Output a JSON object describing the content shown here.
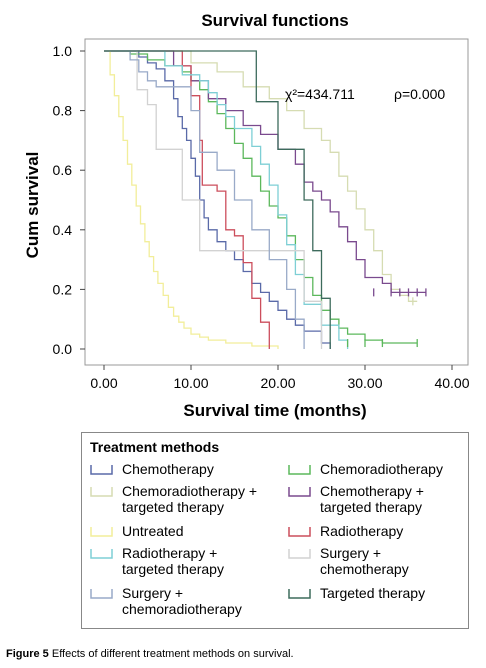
{
  "chart_data": {
    "type": "line",
    "title": "Survival functions",
    "xlabel": "Survival time (months)",
    "ylabel": "Cum survival",
    "xlim": [
      0,
      40
    ],
    "ylim": [
      0,
      1
    ],
    "xticks": [
      "0.00",
      "10.00",
      "20.00",
      "30.00",
      "40.00"
    ],
    "yticks": [
      "0.0",
      "0.2",
      "0.4",
      "0.6",
      "0.8",
      "1.0"
    ],
    "annotation_chi": "χ²=434.711",
    "annotation_p": "ρ=0.000",
    "legend_title": "Treatment methods",
    "series": [
      {
        "name": "Chemotherapy",
        "color": "#5a6aa8",
        "points": [
          [
            0,
            1.0
          ],
          [
            3,
            1.0
          ],
          [
            4,
            0.98
          ],
          [
            5,
            0.96
          ],
          [
            6,
            0.94
          ],
          [
            7,
            0.9
          ],
          [
            8,
            0.84
          ],
          [
            8.5,
            0.78
          ],
          [
            9,
            0.74
          ],
          [
            9.5,
            0.7
          ],
          [
            10,
            0.64
          ],
          [
            10.5,
            0.58
          ],
          [
            11,
            0.5
          ],
          [
            11.5,
            0.44
          ],
          [
            12,
            0.4
          ],
          [
            13,
            0.36
          ],
          [
            14,
            0.33
          ],
          [
            15,
            0.3
          ],
          [
            16,
            0.26
          ],
          [
            17,
            0.22
          ],
          [
            18,
            0.19
          ],
          [
            19,
            0.16
          ],
          [
            20,
            0.13
          ],
          [
            21,
            0.1
          ],
          [
            22,
            0.08
          ],
          [
            23,
            0.06
          ],
          [
            25,
            0.02
          ],
          [
            26,
            0.0
          ]
        ]
      },
      {
        "name": "Chemoradiotherapy",
        "color": "#5cb85c",
        "points": [
          [
            0,
            1.0
          ],
          [
            3,
            0.99
          ],
          [
            5,
            0.97
          ],
          [
            7,
            0.95
          ],
          [
            9,
            0.93
          ],
          [
            10,
            0.9
          ],
          [
            11,
            0.87
          ],
          [
            12,
            0.83
          ],
          [
            13,
            0.79
          ],
          [
            14,
            0.74
          ],
          [
            15,
            0.69
          ],
          [
            16,
            0.64
          ],
          [
            17,
            0.58
          ],
          [
            18,
            0.53
          ],
          [
            19,
            0.48
          ],
          [
            20,
            0.44
          ],
          [
            21,
            0.38
          ],
          [
            22,
            0.3
          ],
          [
            23,
            0.24
          ],
          [
            24,
            0.18
          ],
          [
            25,
            0.13
          ],
          [
            26,
            0.1
          ],
          [
            27,
            0.07
          ],
          [
            28,
            0.05
          ],
          [
            30,
            0.03
          ],
          [
            32,
            0.02
          ],
          [
            36,
            0.02
          ]
        ]
      },
      {
        "name": "Chemoradiotherapy + targeted therapy",
        "color": "#d6dcb2",
        "points": [
          [
            0,
            1.0
          ],
          [
            8,
            1.0
          ],
          [
            10,
            0.96
          ],
          [
            13,
            0.93
          ],
          [
            16,
            0.88
          ],
          [
            19,
            0.84
          ],
          [
            21,
            0.8
          ],
          [
            23,
            0.74
          ],
          [
            25,
            0.7
          ],
          [
            26,
            0.66
          ],
          [
            27,
            0.58
          ],
          [
            28,
            0.53
          ],
          [
            29,
            0.47
          ],
          [
            30,
            0.4
          ],
          [
            31,
            0.33
          ],
          [
            32,
            0.25
          ],
          [
            33,
            0.2
          ],
          [
            34,
            0.18
          ],
          [
            35,
            0.16
          ],
          [
            36,
            0.16
          ]
        ]
      },
      {
        "name": "Chemotherapy + targeted therapy",
        "color": "#7a4a8e",
        "points": [
          [
            0,
            1.0
          ],
          [
            7,
            1.0
          ],
          [
            8,
            0.95
          ],
          [
            10,
            0.9
          ],
          [
            12,
            0.84
          ],
          [
            14,
            0.8
          ],
          [
            16,
            0.75
          ],
          [
            18,
            0.72
          ],
          [
            20,
            0.67
          ],
          [
            22,
            0.62
          ],
          [
            23,
            0.56
          ],
          [
            24,
            0.53
          ],
          [
            25,
            0.5
          ],
          [
            26,
            0.46
          ],
          [
            27,
            0.41
          ],
          [
            28,
            0.36
          ],
          [
            29,
            0.3
          ],
          [
            30,
            0.24
          ],
          [
            31,
            0.24
          ],
          [
            32,
            0.22
          ],
          [
            33,
            0.19
          ],
          [
            37,
            0.19
          ]
        ]
      },
      {
        "name": "Untreated",
        "color": "#f2ee9a",
        "points": [
          [
            0,
            1.0
          ],
          [
            0.7,
            0.92
          ],
          [
            1.2,
            0.85
          ],
          [
            1.7,
            0.78
          ],
          [
            2.2,
            0.7
          ],
          [
            2.7,
            0.62
          ],
          [
            3.2,
            0.55
          ],
          [
            3.7,
            0.48
          ],
          [
            4.2,
            0.42
          ],
          [
            4.7,
            0.36
          ],
          [
            5.2,
            0.31
          ],
          [
            5.7,
            0.26
          ],
          [
            6.2,
            0.22
          ],
          [
            6.8,
            0.18
          ],
          [
            7.4,
            0.14
          ],
          [
            8.0,
            0.11
          ],
          [
            8.6,
            0.09
          ],
          [
            9.2,
            0.07
          ],
          [
            10,
            0.05
          ],
          [
            11,
            0.04
          ],
          [
            12,
            0.03
          ],
          [
            14,
            0.02
          ],
          [
            17,
            0.01
          ],
          [
            20,
            0.0
          ]
        ]
      },
      {
        "name": "Radiotherapy",
        "color": "#cc4e5c",
        "points": [
          [
            0,
            1.0
          ],
          [
            8,
            1.0
          ],
          [
            9,
            0.95
          ],
          [
            10,
            0.85
          ],
          [
            11,
            0.7
          ],
          [
            11.3,
            0.55
          ],
          [
            12,
            0.55
          ],
          [
            13,
            0.53
          ],
          [
            14,
            0.4
          ],
          [
            15,
            0.38
          ],
          [
            16,
            0.29
          ],
          [
            17,
            0.17
          ],
          [
            18,
            0.09
          ],
          [
            19,
            0.0
          ]
        ]
      },
      {
        "name": "Radiotherapy + targeted therapy",
        "color": "#7ecfd5",
        "points": [
          [
            0,
            1.0
          ],
          [
            6,
            1.0
          ],
          [
            7,
            0.95
          ],
          [
            9,
            0.92
          ],
          [
            11,
            0.9
          ],
          [
            12,
            0.86
          ],
          [
            13,
            0.82
          ],
          [
            14,
            0.78
          ],
          [
            15,
            0.74
          ],
          [
            17,
            0.68
          ],
          [
            18,
            0.62
          ],
          [
            19,
            0.55
          ],
          [
            20,
            0.45
          ],
          [
            21,
            0.35
          ],
          [
            22,
            0.25
          ],
          [
            23,
            0.15
          ],
          [
            25,
            0.08
          ],
          [
            27,
            0.03
          ],
          [
            28,
            0.0
          ]
        ]
      },
      {
        "name": "Surgery + chemotherapy",
        "color": "#d2d2d2",
        "points": [
          [
            0,
            1.0
          ],
          [
            3,
            1.0
          ],
          [
            3.8,
            0.87
          ],
          [
            5,
            0.82
          ],
          [
            6,
            0.67
          ],
          [
            8,
            0.67
          ],
          [
            9,
            0.5
          ],
          [
            11,
            0.33
          ],
          [
            22,
            0.33
          ],
          [
            23,
            0.16
          ],
          [
            25,
            0.0
          ]
        ]
      },
      {
        "name": "Surgery + chemoradiotherapy",
        "color": "#99aac8",
        "points": [
          [
            0,
            1.0
          ],
          [
            2,
            1.0
          ],
          [
            3,
            0.97
          ],
          [
            4,
            0.93
          ],
          [
            5,
            0.9
          ],
          [
            6,
            0.88
          ],
          [
            9,
            0.88
          ],
          [
            10,
            0.8
          ],
          [
            11,
            0.66
          ],
          [
            13,
            0.6
          ],
          [
            15,
            0.5
          ],
          [
            17,
            0.4
          ],
          [
            19,
            0.3
          ],
          [
            21,
            0.2
          ],
          [
            22,
            0.1
          ],
          [
            23,
            0.0
          ]
        ]
      },
      {
        "name": "Targeted therapy",
        "color": "#3d6b5c",
        "points": [
          [
            0,
            1.0
          ],
          [
            17,
            1.0
          ],
          [
            17.5,
            0.83
          ],
          [
            19,
            0.83
          ],
          [
            20,
            0.67
          ],
          [
            22,
            0.67
          ],
          [
            23,
            0.5
          ],
          [
            24,
            0.33
          ],
          [
            25,
            0.17
          ],
          [
            26,
            0.0
          ]
        ]
      }
    ]
  },
  "legend_left": [
    {
      "line1": "Chemotherapy",
      "line2": ""
    },
    {
      "line1": "Chemoradiotherapy +",
      "line2": "targeted therapy"
    },
    {
      "line1": "Untreated",
      "line2": ""
    },
    {
      "line1": "Radiotherapy +",
      "line2": "targeted therapy"
    },
    {
      "line1": "Surgery +",
      "line2": "chemoradiotherapy"
    }
  ],
  "legend_right": [
    {
      "line1": "Chemoradiotherapy",
      "line2": ""
    },
    {
      "line1": "Chemotherapy +",
      "line2": "targeted therapy"
    },
    {
      "line1": "Radiotherapy",
      "line2": ""
    },
    {
      "line1": "Surgery +",
      "line2": "chemotherapy"
    },
    {
      "line1": "Targeted therapy",
      "line2": ""
    }
  ],
  "caption": {
    "label": "Figure 5",
    "text": " Effects of different treatment methods on survival."
  }
}
